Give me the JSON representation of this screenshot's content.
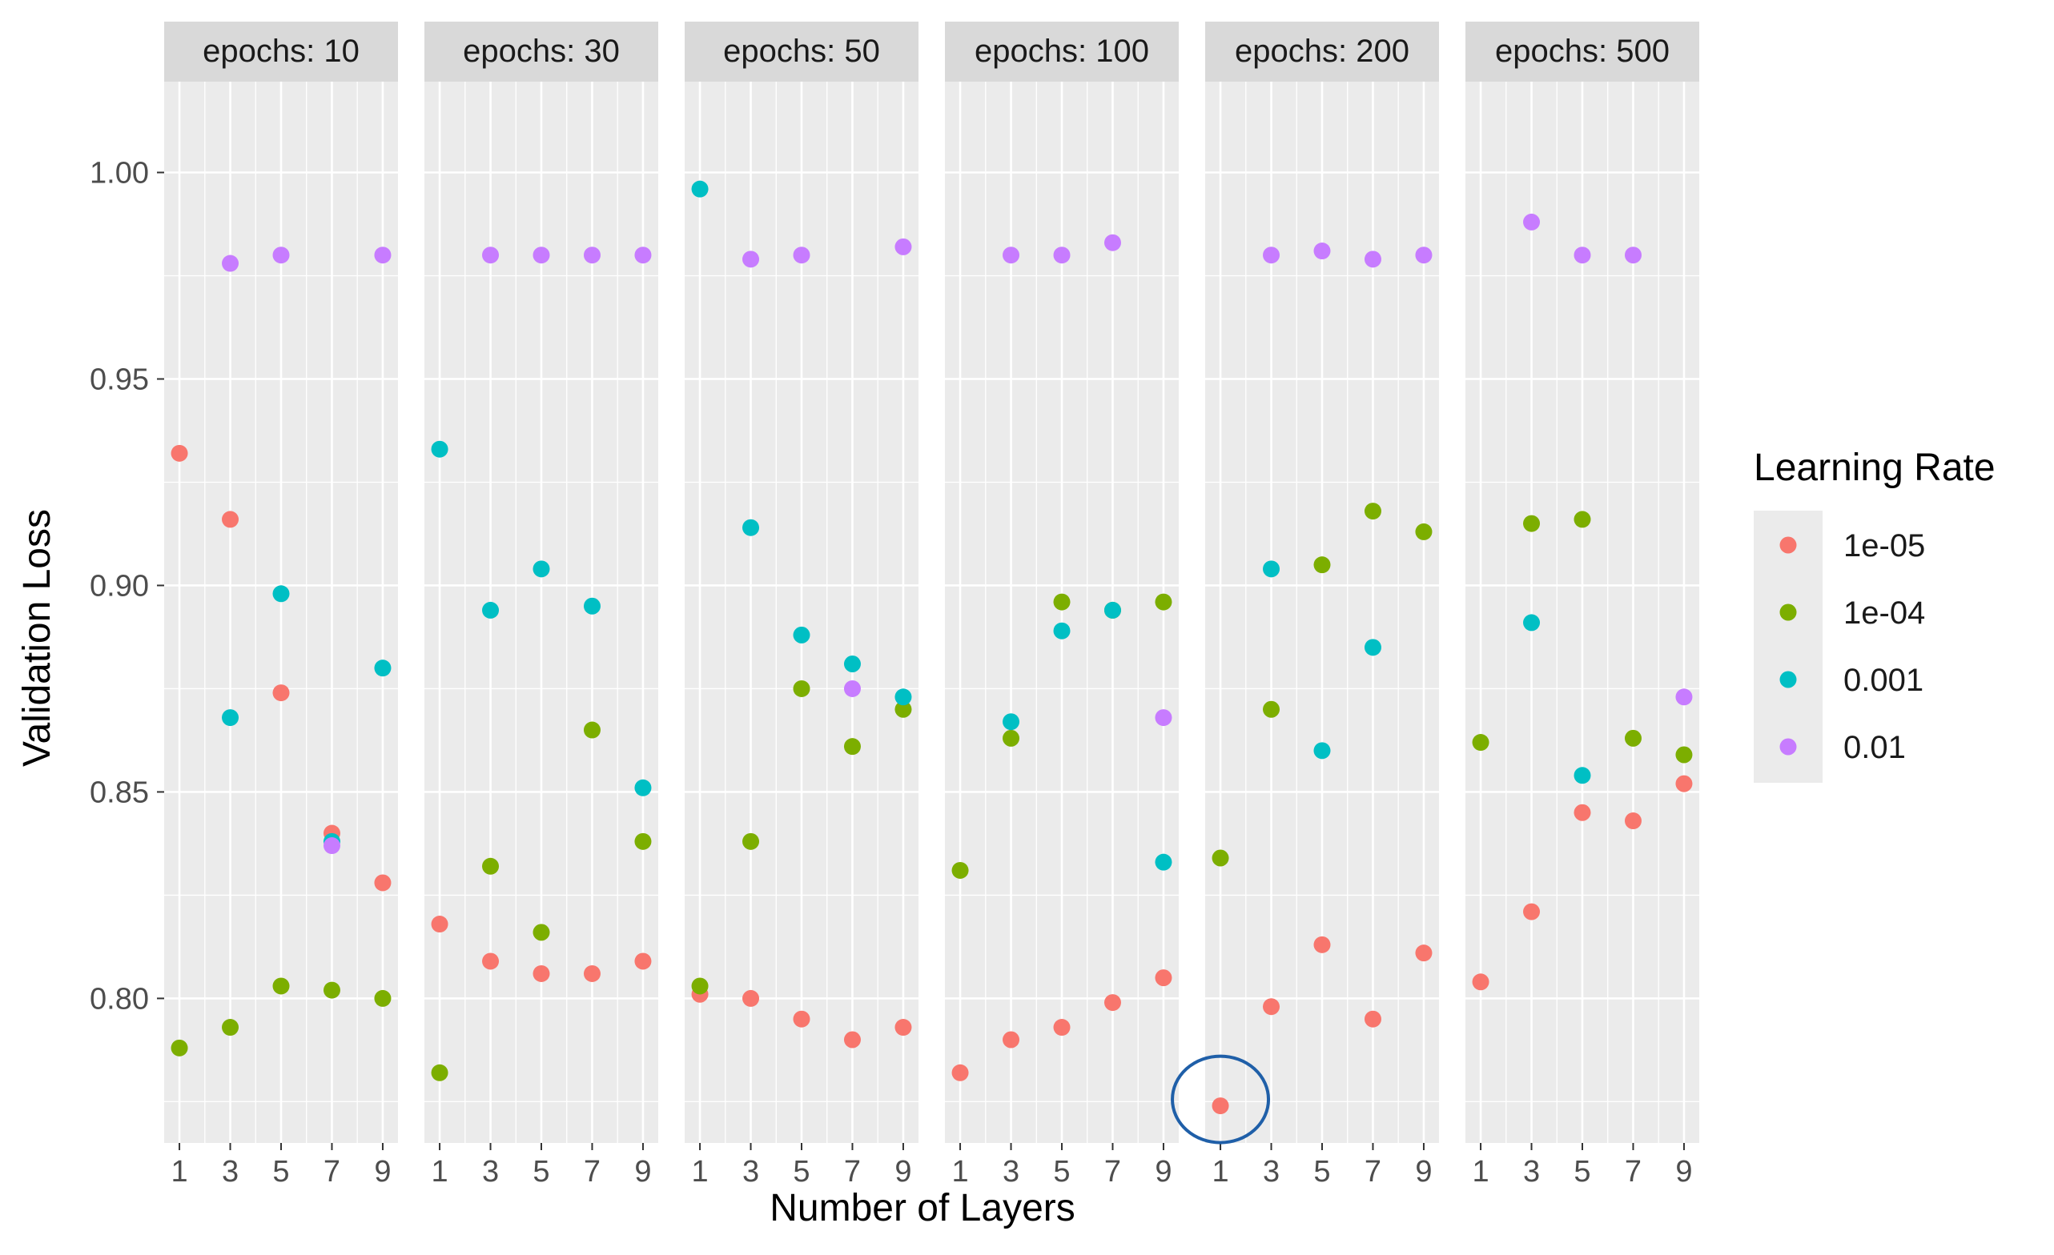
{
  "chart_data": {
    "type": "scatter",
    "xlabel": "Number of Layers",
    "ylabel": "Validation Loss",
    "x_ticks": [
      1,
      3,
      5,
      7,
      9
    ],
    "y_ticks": [
      0.8,
      0.85,
      0.9,
      0.95,
      1.0
    ],
    "y_tick_labels": [
      "0.80",
      "0.85",
      "0.90",
      "0.95",
      "1.00"
    ],
    "ylim": [
      0.765,
      1.022
    ],
    "xlim": [
      0.4,
      9.6
    ],
    "grid": true,
    "legend": {
      "title": "Learning Rate",
      "position": "right",
      "entries": [
        "1e-05",
        "1e-04",
        "0.001",
        "0.01"
      ]
    },
    "colors": {
      "1e-05": "#F8766D",
      "1e-04": "#7CAE00",
      "0.001": "#00BFC4",
      "0.01": "#C77CFF",
      "panel_bg": "#EBEBEB",
      "strip_bg": "#D9D9D9",
      "grid": "#FFFFFF",
      "annotation_circle": "#1F5FA8"
    },
    "panels": [
      {
        "label": "epochs: 10",
        "series": {
          "1e-05": [
            [
              1,
              0.932
            ],
            [
              3,
              0.916
            ],
            [
              5,
              0.874
            ],
            [
              7,
              0.84
            ],
            [
              9,
              0.828
            ]
          ],
          "1e-04": [
            [
              1,
              0.788
            ],
            [
              3,
              0.793
            ],
            [
              5,
              0.803
            ],
            [
              7,
              0.802
            ],
            [
              9,
              0.8
            ]
          ],
          "0.001": [
            [
              3,
              0.868
            ],
            [
              5,
              0.898
            ],
            [
              7,
              0.838
            ],
            [
              9,
              0.88
            ]
          ],
          "0.01": [
            [
              3,
              0.978
            ],
            [
              5,
              0.98
            ],
            [
              7,
              0.837
            ],
            [
              9,
              0.98
            ]
          ]
        }
      },
      {
        "label": "epochs: 30",
        "series": {
          "1e-05": [
            [
              1,
              0.818
            ],
            [
              3,
              0.809
            ],
            [
              5,
              0.806
            ],
            [
              7,
              0.806
            ],
            [
              9,
              0.809
            ]
          ],
          "1e-04": [
            [
              1,
              0.782
            ],
            [
              3,
              0.832
            ],
            [
              5,
              0.816
            ],
            [
              7,
              0.865
            ],
            [
              9,
              0.838
            ]
          ],
          "0.001": [
            [
              1,
              0.933
            ],
            [
              3,
              0.894
            ],
            [
              5,
              0.904
            ],
            [
              7,
              0.895
            ],
            [
              9,
              0.851
            ]
          ],
          "0.01": [
            [
              3,
              0.98
            ],
            [
              5,
              0.98
            ],
            [
              7,
              0.98
            ],
            [
              9,
              0.98
            ]
          ]
        }
      },
      {
        "label": "epochs: 50",
        "series": {
          "1e-05": [
            [
              1,
              0.801
            ],
            [
              3,
              0.8
            ],
            [
              5,
              0.795
            ],
            [
              7,
              0.79
            ],
            [
              9,
              0.793
            ]
          ],
          "1e-04": [
            [
              1,
              0.803
            ],
            [
              3,
              0.838
            ],
            [
              5,
              0.875
            ],
            [
              7,
              0.861
            ],
            [
              9,
              0.87
            ]
          ],
          "0.001": [
            [
              1,
              0.996
            ],
            [
              3,
              0.914
            ],
            [
              5,
              0.888
            ],
            [
              7,
              0.881
            ],
            [
              9,
              0.873
            ]
          ],
          "0.01": [
            [
              3,
              0.979
            ],
            [
              5,
              0.98
            ],
            [
              7,
              0.875
            ],
            [
              9,
              0.982
            ]
          ]
        }
      },
      {
        "label": "epochs: 100",
        "series": {
          "1e-05": [
            [
              1,
              0.782
            ],
            [
              3,
              0.79
            ],
            [
              5,
              0.793
            ],
            [
              7,
              0.799
            ],
            [
              9,
              0.805
            ]
          ],
          "1e-04": [
            [
              1,
              0.831
            ],
            [
              3,
              0.863
            ],
            [
              5,
              0.896
            ],
            [
              7,
              0.894
            ],
            [
              9,
              0.896
            ]
          ],
          "0.001": [
            [
              3,
              0.867
            ],
            [
              5,
              0.889
            ],
            [
              7,
              0.894
            ],
            [
              9,
              0.833
            ]
          ],
          "0.01": [
            [
              3,
              0.98
            ],
            [
              5,
              0.98
            ],
            [
              7,
              0.983
            ],
            [
              9,
              0.868
            ]
          ]
        }
      },
      {
        "label": "epochs: 200",
        "series": {
          "1e-05": [
            [
              1,
              0.774
            ],
            [
              3,
              0.798
            ],
            [
              5,
              0.813
            ],
            [
              7,
              0.795
            ],
            [
              9,
              0.811
            ]
          ],
          "1e-04": [
            [
              1,
              0.834
            ],
            [
              3,
              0.87
            ],
            [
              5,
              0.905
            ],
            [
              7,
              0.918
            ],
            [
              9,
              0.913
            ]
          ],
          "0.001": [
            [
              3,
              0.904
            ],
            [
              5,
              0.86
            ],
            [
              7,
              0.885
            ]
          ],
          "0.01": [
            [
              3,
              0.98
            ],
            [
              5,
              0.981
            ],
            [
              7,
              0.979
            ],
            [
              9,
              0.98
            ]
          ]
        },
        "highlight": {
          "x": 1,
          "y": 0.774,
          "series": "1e-05"
        }
      },
      {
        "label": "epochs: 500",
        "series": {
          "1e-05": [
            [
              1,
              0.804
            ],
            [
              3,
              0.821
            ],
            [
              5,
              0.845
            ],
            [
              7,
              0.843
            ],
            [
              9,
              0.852
            ]
          ],
          "1e-04": [
            [
              1,
              0.862
            ],
            [
              3,
              0.915
            ],
            [
              5,
              0.916
            ],
            [
              7,
              0.863
            ],
            [
              9,
              0.859
            ]
          ],
          "0.001": [
            [
              3,
              0.891
            ],
            [
              5,
              0.854
            ]
          ],
          "0.01": [
            [
              3,
              0.988
            ],
            [
              5,
              0.98
            ],
            [
              7,
              0.98
            ],
            [
              9,
              0.873
            ]
          ]
        }
      }
    ]
  }
}
